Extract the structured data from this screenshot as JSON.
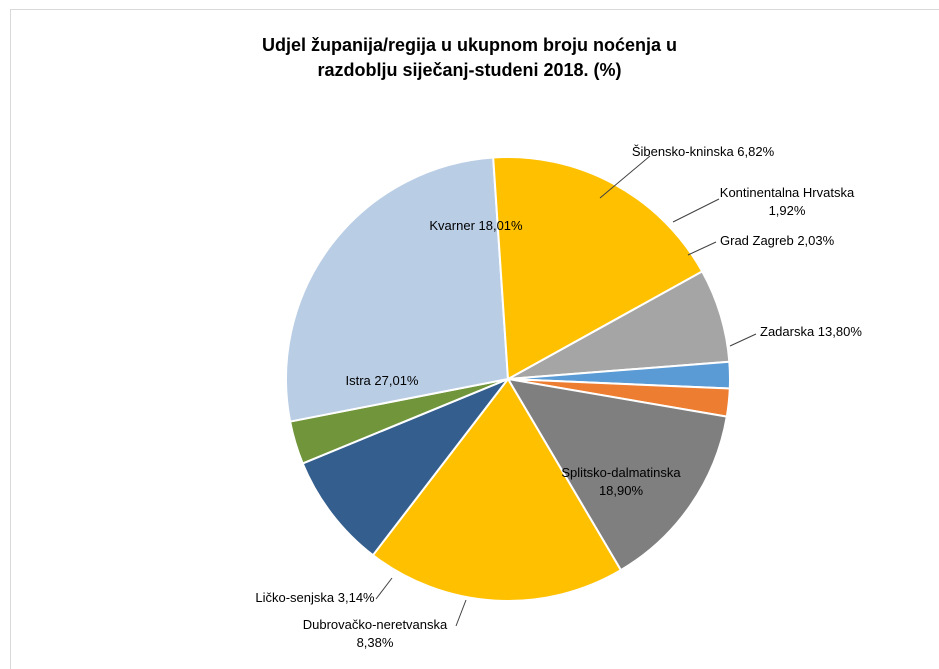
{
  "chart_data": {
    "type": "pie",
    "title_line1": "Udjel županija/regija u ukupnom broju noćenja u",
    "title_line2": "razdoblju siječanj-studeni 2018. (%)",
    "slices": [
      {
        "name": "Šibensko-kninska",
        "value": 6.82,
        "label_lines": [
          "Šibensko-kninska 6,82%"
        ],
        "color": "#A5A5A5"
      },
      {
        "name": "Kontinentalna Hrvatska",
        "value": 1.92,
        "label_lines": [
          "Kontinentalna Hrvatska",
          "1,92%"
        ],
        "color": "#5B9BD5"
      },
      {
        "name": "Grad Zagreb",
        "value": 2.03,
        "label_lines": [
          "Grad Zagreb 2,03%"
        ],
        "color": "#ED7D31"
      },
      {
        "name": "Zadarska",
        "value": 13.8,
        "label_lines": [
          "Zadarska 13,80%"
        ],
        "color": "#7F7F7F"
      },
      {
        "name": "Splitsko-dalmatinska",
        "value": 18.9,
        "label_lines": [
          "Splitsko-dalmatinska",
          "18,90%"
        ],
        "color": "#FFC000"
      },
      {
        "name": "Dubrovačko-neretvanska",
        "value": 8.38,
        "label_lines": [
          "Dubrovačko-neretvanska",
          "8,38%"
        ],
        "color": "#335E8E"
      },
      {
        "name": "Ličko-senjska",
        "value": 3.14,
        "label_lines": [
          "Ličko-senjska 3,14%"
        ],
        "color": "#70953A"
      },
      {
        "name": "Istra",
        "value": 27.01,
        "label_lines": [
          "Istra  27,01%"
        ],
        "color": "#B9CDE5"
      },
      {
        "name": "Kvarner",
        "value": 18.01,
        "label_lines": [
          "Kvarner 18,01%"
        ],
        "color": "#FFC000"
      }
    ]
  }
}
